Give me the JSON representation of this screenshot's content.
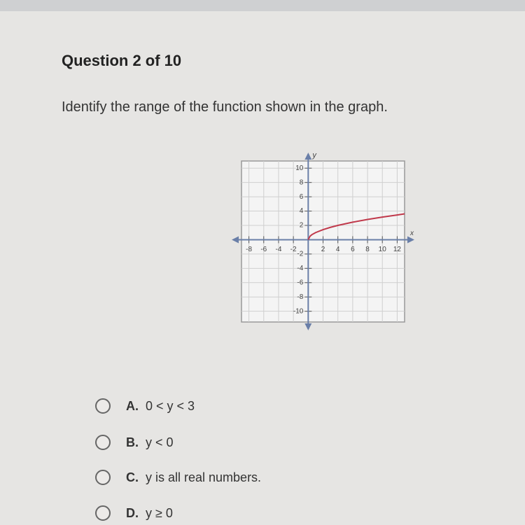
{
  "header": {
    "title": "Question 2 of 10"
  },
  "question": {
    "text": "Identify the range of the function shown in the graph."
  },
  "graph": {
    "type": "line",
    "x_axis_label": "x",
    "y_axis_label": "y",
    "xlim": [
      -9,
      13
    ],
    "ylim": [
      -11.5,
      11
    ],
    "xticks": [
      -8,
      -6,
      -4,
      -2,
      2,
      4,
      6,
      8,
      10,
      12
    ],
    "yticks": [
      10,
      8,
      6,
      4,
      2,
      -2,
      -4,
      -6,
      -8,
      -10
    ],
    "grid": true,
    "series": [
      {
        "color": "#c0394b",
        "x": [
          0,
          0.25,
          0.5,
          1,
          2,
          3,
          4,
          6,
          8,
          10,
          12,
          13
        ],
        "values": [
          0,
          0.5,
          0.71,
          1,
          1.41,
          1.73,
          2,
          2.45,
          2.83,
          3.16,
          3.46,
          3.61
        ]
      }
    ]
  },
  "options": [
    {
      "letter": "A.",
      "text": "0 < y < 3"
    },
    {
      "letter": "B.",
      "text": "y < 0"
    },
    {
      "letter": "C.",
      "text": "y is all real numbers."
    },
    {
      "letter": "D.",
      "text": "y ≥ 0"
    }
  ]
}
